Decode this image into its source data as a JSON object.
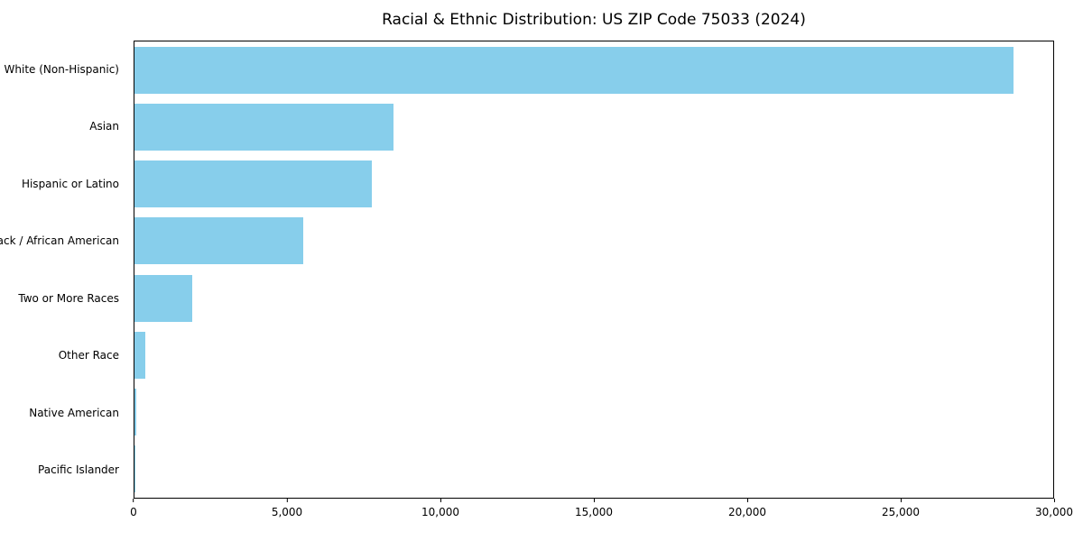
{
  "chart_data": {
    "type": "bar",
    "orientation": "horizontal",
    "title": "Racial & Ethnic Distribution: US ZIP Code 75033 (2024)",
    "categories": [
      "White (Non-Hispanic)",
      "Asian",
      "Hispanic or Latino",
      "Black / African American",
      "Two or More Races",
      "Other Race",
      "Native American",
      "Pacific Islander"
    ],
    "values": [
      28700,
      8450,
      7750,
      5500,
      1900,
      350,
      50,
      20
    ],
    "xlabel": "",
    "ylabel": "",
    "xlim": [
      0,
      30000
    ],
    "bar_color": "#87CEEB",
    "background_color": "#ffffff",
    "axis_color": "#000000",
    "grid": false,
    "legend_position": "none",
    "xticks": [
      {
        "value": 0,
        "label": "0"
      },
      {
        "value": 5000,
        "label": "5,000"
      },
      {
        "value": 10000,
        "label": "10,000"
      },
      {
        "value": 15000,
        "label": "15,000"
      },
      {
        "value": 20000,
        "label": "20,000"
      },
      {
        "value": 25000,
        "label": "25,000"
      },
      {
        "value": 30000,
        "label": "30,000"
      }
    ]
  }
}
